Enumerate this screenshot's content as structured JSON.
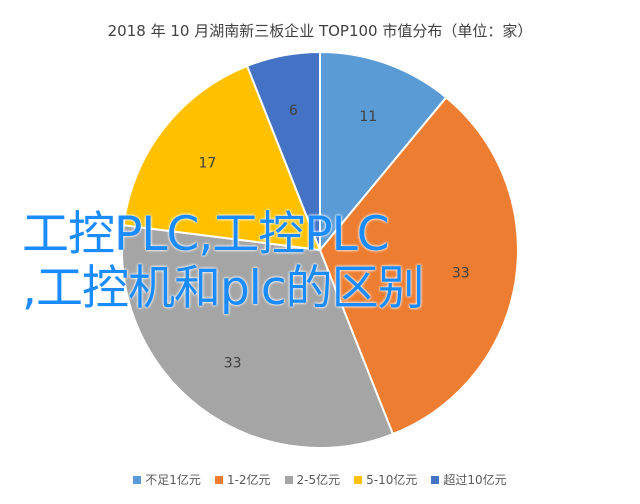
{
  "chart_data": {
    "type": "pie",
    "title": "2018 年 10 月湖南新三板企业 TOP100 市值分布（单位：家）",
    "categories": [
      "不足1亿元",
      "1-2亿元",
      "2-5亿元",
      "5-10亿元",
      "超过10亿元"
    ],
    "values": [
      11,
      33,
      33,
      17,
      6
    ],
    "display_order": [
      0,
      1,
      2,
      3,
      4
    ],
    "colors": [
      "#5b9bd5",
      "#ed7d31",
      "#a5a5a5",
      "#ffc000",
      "#4472c4"
    ],
    "legend_position": "bottom"
  },
  "overlay": {
    "line1": "工控PLC,工控PLC",
    "line2": ",工控机和plc的区别"
  }
}
